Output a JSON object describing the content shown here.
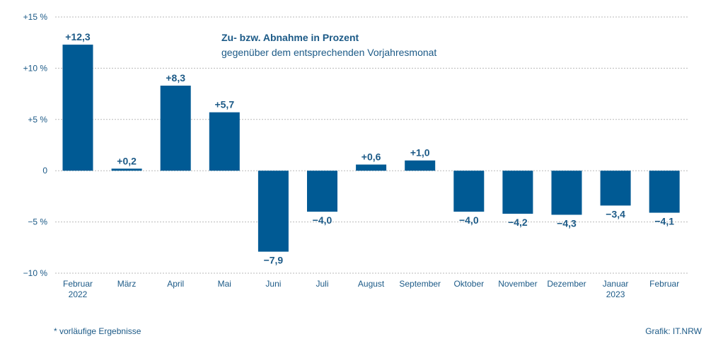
{
  "chart_data": {
    "type": "bar",
    "title": "Zu- bzw. Abnahme in Prozent",
    "subtitle": "gegenüber dem entsprechenden Vorjahresmonat",
    "categories": [
      [
        "Februar",
        "2022"
      ],
      [
        "März"
      ],
      [
        "April"
      ],
      [
        "Mai"
      ],
      [
        "Juni"
      ],
      [
        "Juli"
      ],
      [
        "August"
      ],
      [
        "September"
      ],
      [
        "Oktober"
      ],
      [
        "November"
      ],
      [
        "Dezember"
      ],
      [
        "Januar",
        "2023"
      ],
      [
        "Februar"
      ]
    ],
    "values": [
      12.3,
      0.2,
      8.3,
      5.7,
      -7.9,
      -4.0,
      0.6,
      1.0,
      -4.0,
      -4.2,
      -4.3,
      -3.4,
      -4.1
    ],
    "value_labels": [
      "+12,3",
      "+0,2",
      "+8,3",
      "+5,7",
      "−7,9",
      "−4,0",
      "+0,6",
      "+1,0",
      "−4,0",
      "−4,2",
      "−4,3",
      "−3,4",
      "−4,1"
    ],
    "y_ticks": [
      {
        "value": 15,
        "label": "+15 %"
      },
      {
        "value": 10,
        "label": "+10 %"
      },
      {
        "value": 5,
        "label": "+5 %"
      },
      {
        "value": 0,
        "label": "0"
      },
      {
        "value": -5,
        "label": "−5 %"
      },
      {
        "value": -10,
        "label": "−10 %"
      }
    ],
    "ylim": [
      -10,
      15
    ],
    "grid": true,
    "bar_color": "#005a94",
    "text_color": "#1c5a87"
  },
  "footnote": "*  vorläufige Ergebnisse",
  "credit": "Grafik: IT.NRW"
}
